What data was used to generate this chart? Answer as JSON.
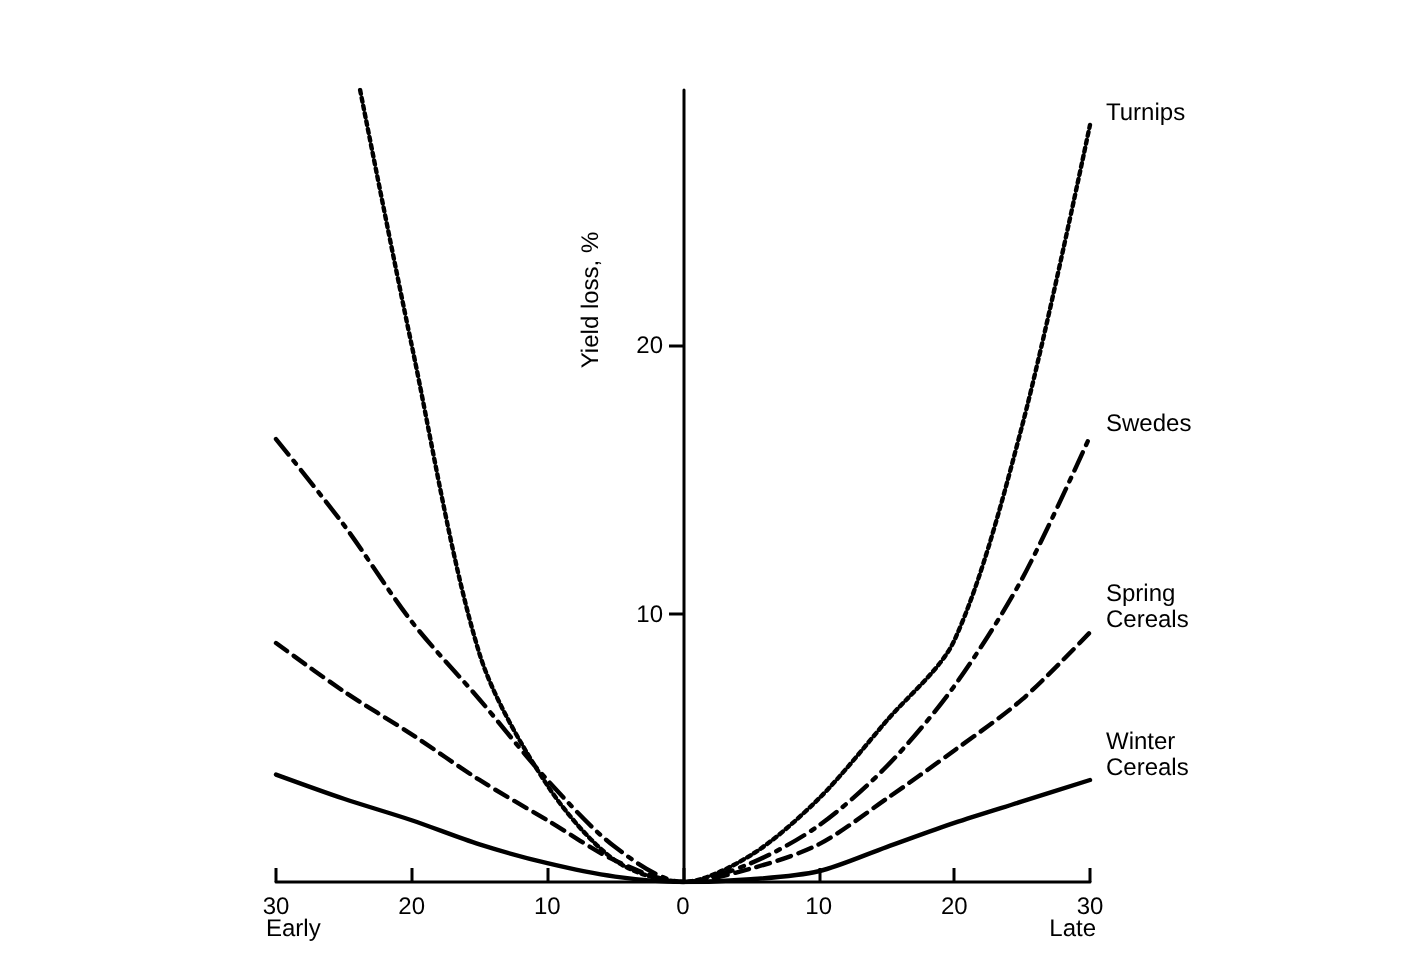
{
  "chart_data": {
    "type": "line",
    "ylabel": "Yield loss, %",
    "xlim": [
      -30,
      30
    ],
    "ylim": [
      0,
      29.5
    ],
    "xticks": [
      {
        "value": -30,
        "label": "30"
      },
      {
        "value": -20,
        "label": "20"
      },
      {
        "value": -10,
        "label": "10"
      },
      0,
      10,
      20,
      30
    ],
    "yticks": [
      10,
      20
    ],
    "grid": false,
    "legend": false,
    "marker": "none",
    "annotations": [
      "Early",
      "Late"
    ],
    "series": [
      {
        "name": "Turnips",
        "color": "#000000",
        "line_style": "dotted",
        "x": [
          -23.8,
          -20,
          -15,
          -10,
          -5,
          0,
          5,
          10,
          15,
          20,
          25,
          30
        ],
        "values": [
          29.5,
          20,
          8.5,
          3.6,
          0.8,
          0,
          1.0,
          3.1,
          6.0,
          9.0,
          17,
          28.2
        ]
      },
      {
        "name": "Swedes",
        "color": "#000000",
        "line_style": "dashdot",
        "x": [
          -30,
          -25,
          -20,
          -15,
          -10,
          -5,
          0,
          5,
          10,
          15,
          20,
          25,
          30
        ],
        "values": [
          16.5,
          13.3,
          9.7,
          6.8,
          3.8,
          1.3,
          0,
          0.7,
          2.1,
          4.3,
          7.3,
          11.3,
          16.6
        ]
      },
      {
        "name": "Spring Cereals",
        "color": "#000000",
        "line_style": "dashed",
        "x": [
          -30,
          -25,
          -20,
          -15,
          -10,
          -5,
          0,
          5,
          10,
          15,
          20,
          25,
          30
        ],
        "values": [
          8.9,
          7.1,
          5.5,
          3.8,
          2.3,
          0.8,
          0,
          0.5,
          1.4,
          3.1,
          4.9,
          6.8,
          9.3
        ]
      },
      {
        "name": "Winter Cereals",
        "color": "#000000",
        "line_style": "solid",
        "x": [
          -30,
          -25,
          -20,
          -15,
          -10,
          -5,
          0,
          5,
          10,
          15,
          20,
          25,
          30
        ],
        "values": [
          4.0,
          3.1,
          2.3,
          1.4,
          0.7,
          0.2,
          0,
          0.1,
          0.4,
          1.3,
          2.2,
          3.0,
          3.8
        ]
      }
    ]
  }
}
